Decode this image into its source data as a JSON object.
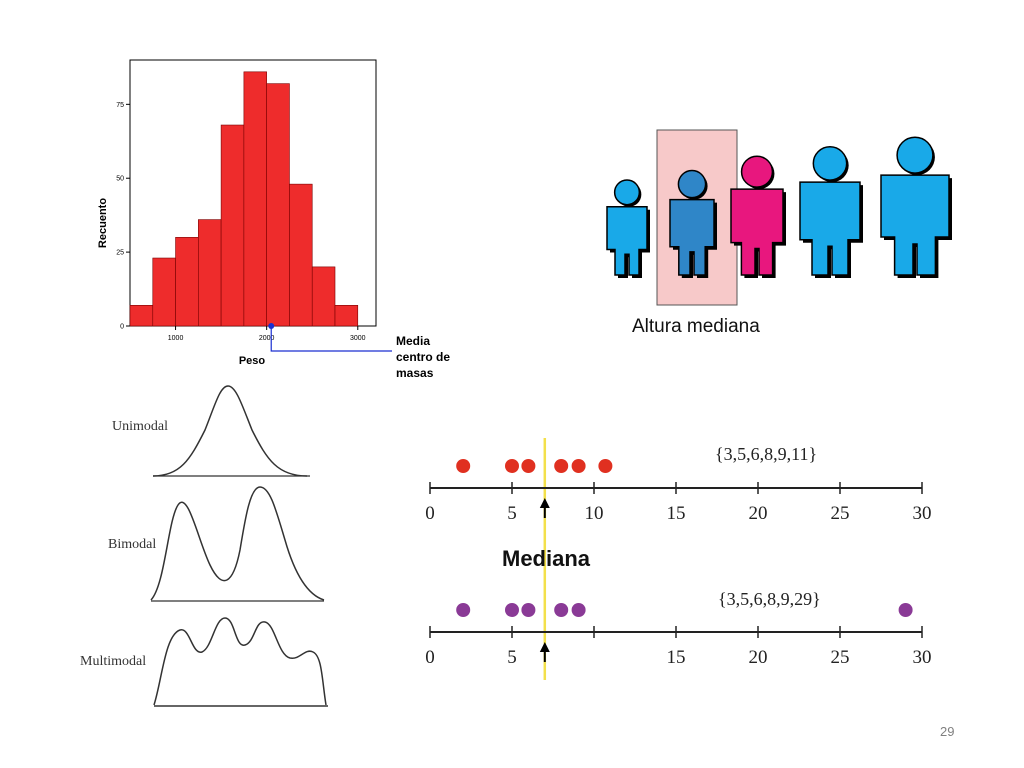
{
  "slide": {
    "page_number": "29"
  },
  "colors": {
    "bar_fill": "#ee2c2c",
    "bar_edge": "#7a0000",
    "mean_marker": "#1a2fd1",
    "person_blue": "#19a9e8",
    "person_median": "#2f86c8",
    "person_pink": "#e8177e",
    "median_highlight": "#f7c9c9",
    "dot_red": "#e03020",
    "dot_purple": "#8a3a96",
    "median_line": "#f3e04a"
  },
  "histogram": {
    "ylabel": "Recuento",
    "xlabel": "Peso",
    "annotation": [
      "Media",
      "centro de",
      "masas"
    ]
  },
  "people": {
    "caption": "Altura mediana",
    "heights": [
      1,
      1.1,
      1.25,
      1.35,
      1.45
    ]
  },
  "modality": {
    "labels": [
      "Unimodal",
      "Bimodal",
      "Multimodal"
    ]
  },
  "median_lines": {
    "title": "Mediana",
    "set1_label": "{3,5,6,8,9,11}",
    "set2_label": "{3,5,6,8,9,29}"
  },
  "chart_data": [
    {
      "type": "bar",
      "title": "",
      "xlabel": "Peso",
      "ylabel": "Recuento",
      "bin_edges": [
        500,
        750,
        1000,
        1250,
        1500,
        1750,
        2000,
        2250,
        2500,
        2750,
        3000,
        3250
      ],
      "values": [
        7,
        23,
        30,
        36,
        68,
        86,
        82,
        48,
        20,
        7,
        0
      ],
      "xlim": [
        500,
        3200
      ],
      "ylim": [
        0,
        90
      ],
      "xticks": [
        1000,
        2000,
        3000
      ],
      "xtick_labels": [
        "1000",
        "2000",
        "3000"
      ],
      "yticks": [
        0,
        25,
        50,
        75
      ],
      "ytick_labels": [
        "0",
        "25",
        "50",
        "75"
      ],
      "mean_marker_x": 2050
    },
    {
      "type": "scatter",
      "xlim": [
        0,
        30
      ],
      "xticks": [
        0,
        5,
        10,
        15,
        20,
        25,
        30
      ],
      "tick_labels_top": [
        "0",
        "5",
        "10",
        "15",
        "20",
        "25",
        "30"
      ],
      "tick_labels_bottom": [
        "0",
        "5",
        "",
        "15",
        "20",
        "25",
        "30"
      ],
      "median": 7,
      "series": [
        {
          "values": [
            3,
            5,
            6,
            8,
            9,
            11
          ]
        },
        {
          "values": [
            3,
            5,
            6,
            8,
            9,
            29
          ]
        }
      ]
    }
  ]
}
